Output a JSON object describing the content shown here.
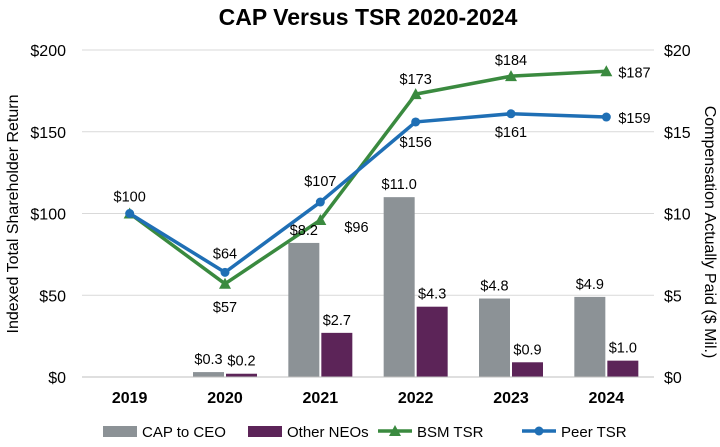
{
  "chart_data": {
    "type": "bar",
    "title": "CAP Versus TSR 2020-2024",
    "categories": [
      "2019",
      "2020",
      "2021",
      "2022",
      "2023",
      "2024"
    ],
    "ylabel_left": "Indexed Total Shareholder Return",
    "ylabel_right": "Compensation Actually Paid ($ Mil.)",
    "ylim_left": [
      0,
      200
    ],
    "ylim_right": [
      0,
      20
    ],
    "yticks_left": [
      "$0",
      "$50",
      "$100",
      "$150",
      "$200"
    ],
    "yticks_right": [
      "$0",
      "$5",
      "$10",
      "$15",
      "$20"
    ],
    "grid": true,
    "legend_position": "bottom",
    "bar_series": [
      {
        "name": "CAP to CEO",
        "color": "#8c9296",
        "axis": "right",
        "values": [
          null,
          0.3,
          8.2,
          11.0,
          4.8,
          4.9
        ],
        "labels": [
          "",
          "$0.3",
          "$8.2",
          "$11.0",
          "$4.8",
          "$4.9"
        ]
      },
      {
        "name": "Other NEOs",
        "color": "#5c2458",
        "axis": "right",
        "values": [
          null,
          0.2,
          2.7,
          4.3,
          0.9,
          1.0
        ],
        "labels": [
          "",
          "$0.2",
          "$2.7",
          "$4.3",
          "$0.9",
          "$1.0"
        ]
      }
    ],
    "line_series": [
      {
        "name": "BSM TSR",
        "color": "#3a8a3f",
        "marker": "triangle",
        "axis": "left",
        "values": [
          100,
          57,
          96,
          173,
          184,
          187
        ],
        "labels": [
          "$100",
          "$57",
          "$96",
          "$173",
          "$184",
          "$187"
        ]
      },
      {
        "name": "Peer TSR",
        "color": "#1f6fb5",
        "marker": "circle",
        "axis": "left",
        "values": [
          100,
          64,
          107,
          156,
          161,
          159
        ],
        "labels": [
          "",
          "$64",
          "$107",
          "$156",
          "$161",
          "$159"
        ]
      }
    ]
  }
}
